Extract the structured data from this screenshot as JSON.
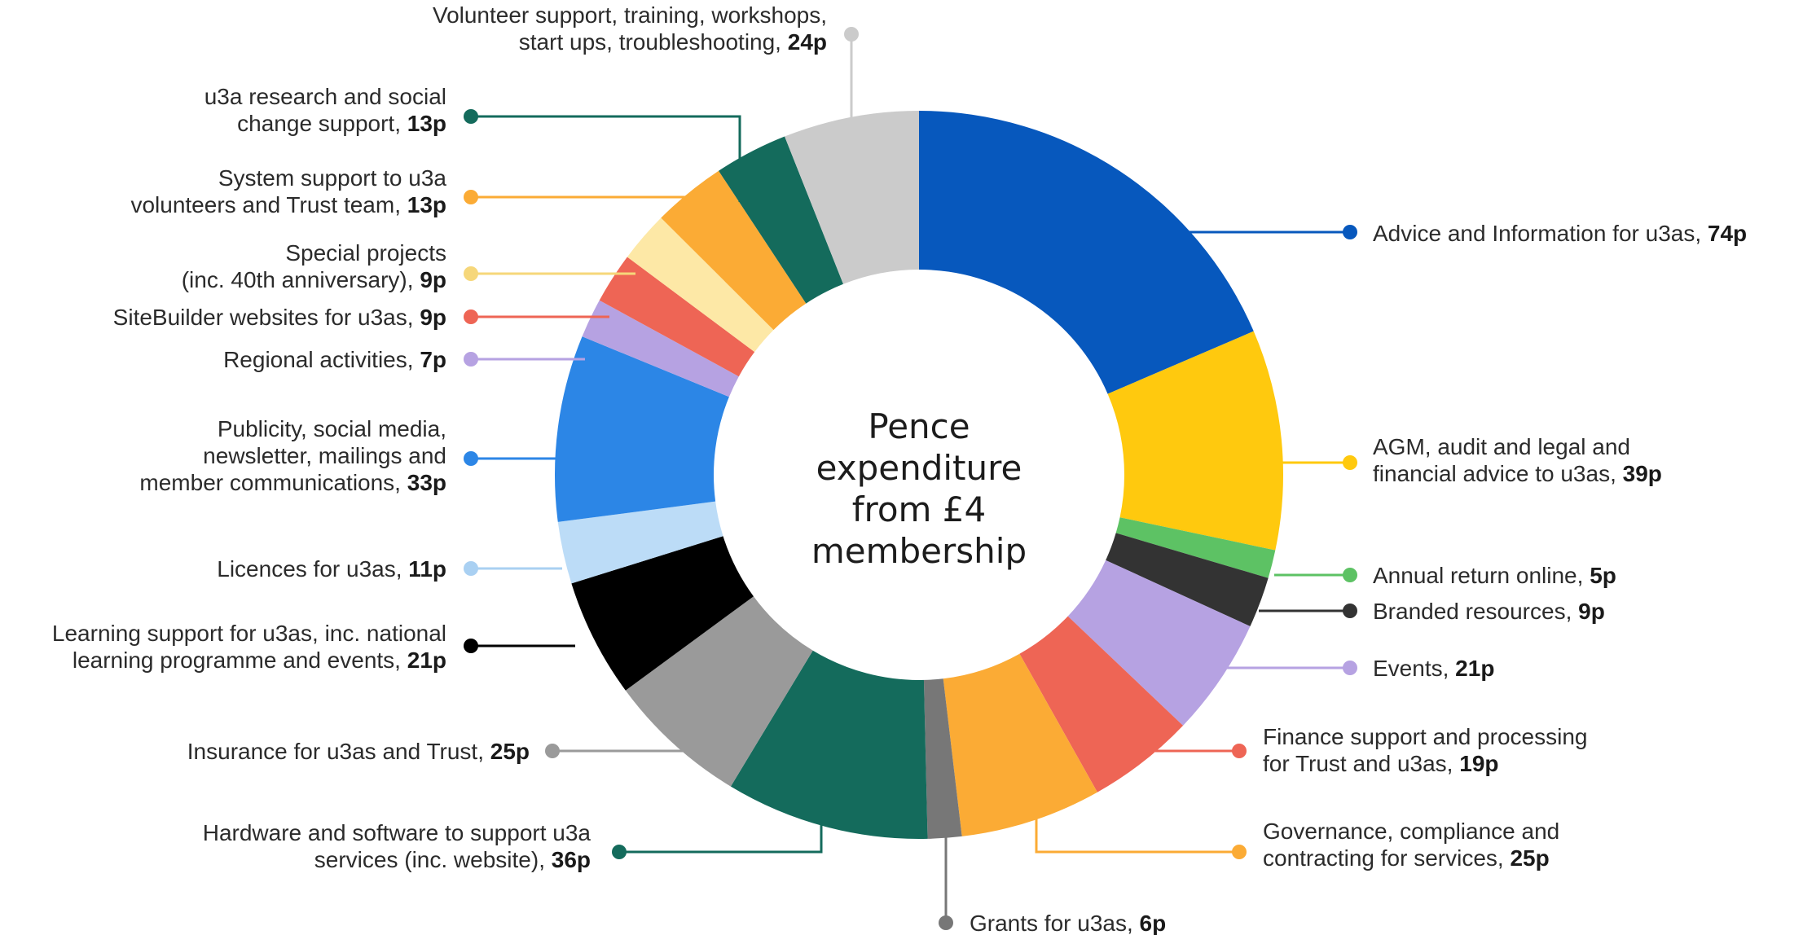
{
  "chart_data": {
    "type": "pie",
    "title": "Pence expenditure from £4 membership",
    "title_lines": [
      "Pence",
      "expenditure",
      "from £4",
      "membership"
    ],
    "donut": true,
    "legend": "leader-line labels around the chart",
    "slices": [
      {
        "label": [
          "Advice and Information for u3as, "
        ],
        "value": 74,
        "value_text": "74p",
        "color": "#0758bd"
      },
      {
        "label": [
          "AGM, audit and legal and",
          "financial advice to u3as, "
        ],
        "value": 39,
        "value_text": "39p",
        "color": "#ffc90e"
      },
      {
        "label": [
          "Annual return online, "
        ],
        "value": 5,
        "value_text": "5p",
        "color": "#5dc264"
      },
      {
        "label": [
          "Branded resources, "
        ],
        "value": 9,
        "value_text": "9p",
        "color": "#333333"
      },
      {
        "label": [
          "Events, "
        ],
        "value": 21,
        "value_text": "21p",
        "color": "#b6a2e2"
      },
      {
        "label": [
          "Finance support and processing",
          "for Trust and u3as, "
        ],
        "value": 19,
        "value_text": "19p",
        "color": "#ee6555"
      },
      {
        "label": [
          "Governance, compliance and",
          "contracting for services, "
        ],
        "value": 25,
        "value_text": "25p",
        "color": "#fbab35"
      },
      {
        "label": [
          "Grants for u3as, "
        ],
        "value": 6,
        "value_text": "6p",
        "color": "#777777"
      },
      {
        "label": [
          "Hardware and software to support u3a",
          "services (inc. website), "
        ],
        "value": 36,
        "value_text": "36p",
        "color": "#146b5c"
      },
      {
        "label": [
          "Insurance for u3as and Trust, "
        ],
        "value": 25,
        "value_text": "25p",
        "color": "#9a9a9a"
      },
      {
        "label": [
          "Learning support for u3as, inc. national",
          "learning programme and events, "
        ],
        "value": 21,
        "value_text": "21p",
        "color": "#000000"
      },
      {
        "label": [
          "Licences for u3as, "
        ],
        "value": 11,
        "value_text": "11p",
        "color": "#bcdcf7"
      },
      {
        "label": [
          "Publicity, social media,",
          "newsletter, mailings and",
          "member communications, "
        ],
        "value": 33,
        "value_text": "33p",
        "color": "#2c86e6"
      },
      {
        "label": [
          "Regional activities, "
        ],
        "value": 7,
        "value_text": "7p",
        "color": "#b6a2e2"
      },
      {
        "label": [
          "SiteBuilder websites for u3as, "
        ],
        "value": 9,
        "value_text": "9p",
        "color": "#ee6555"
      },
      {
        "label": [
          "Special projects",
          "(inc. 40th anniversary), "
        ],
        "value": 9,
        "value_text": "9p",
        "color": "#fde8a6"
      },
      {
        "label": [
          "System support to u3a",
          "volunteers and Trust team, "
        ],
        "value": 13,
        "value_text": "13p",
        "color": "#fbab35"
      },
      {
        "label": [
          "u3a research and social",
          "change support, "
        ],
        "value": 13,
        "value_text": "13p",
        "color": "#146b5c"
      },
      {
        "label": [
          "Volunteer support, training, workshops,",
          "start ups, troubleshooting, "
        ],
        "value": 24,
        "value_text": "24p",
        "color": "#cbcbcb"
      }
    ]
  }
}
